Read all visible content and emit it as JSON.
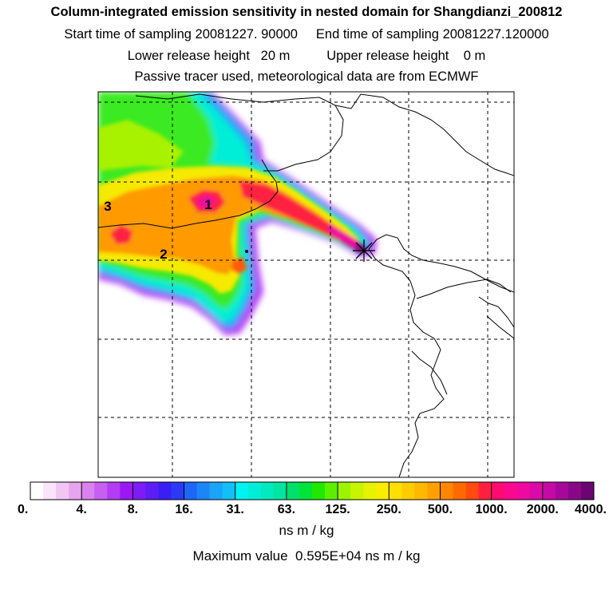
{
  "header": {
    "title": "Column-integrated emission sensitivity in nested domain for Shangdianzi_200812",
    "line2": "Start time of sampling 20081227. 90000     End time of sampling 20081227.120000",
    "line3": "Lower release height   20 m          Upper release height    0 m",
    "line4": "Passive tracer used, meteorological data are from ECMWF"
  },
  "map": {
    "region_labels": [
      "1",
      "2",
      "3"
    ],
    "receptor_marker": "station-star"
  },
  "legend": {
    "tick_labels": [
      "0.",
      "4.",
      "8.",
      "16.",
      "31.",
      "63.",
      "125.",
      "250.",
      "500.",
      "1000.",
      "2000.",
      "4000."
    ],
    "colors": [
      "#ffffff",
      "#f9e4f9",
      "#f2c6f4",
      "#e7a4ef",
      "#d982ee",
      "#c85ff0",
      "#b43cf3",
      "#9b18f5",
      "#7e1cf6",
      "#5c1ef5",
      "#3a1ff5",
      "#2a3af5",
      "#1e66f7",
      "#1a86f8",
      "#1aa3f8",
      "#12c0f5",
      "#00f2f2",
      "#00eed8",
      "#00eabd",
      "#00e6a0",
      "#00e06a",
      "#00e43a",
      "#22e800",
      "#5cf000",
      "#9cf400",
      "#c8f400",
      "#e6f200",
      "#f8ec00",
      "#ffe000",
      "#ffcc00",
      "#ffb800",
      "#ffa000",
      "#ff8600",
      "#ff6a00",
      "#ff4a10",
      "#ff2040",
      "#ff0a70",
      "#fc0890",
      "#ee0aa0",
      "#da0aa8",
      "#c40aa6",
      "#a8089a",
      "#8a0888",
      "#6c0474"
    ],
    "units": "ns m / kg",
    "max_value_text": "Maximum value  0.595E+04 ns m / kg"
  }
}
